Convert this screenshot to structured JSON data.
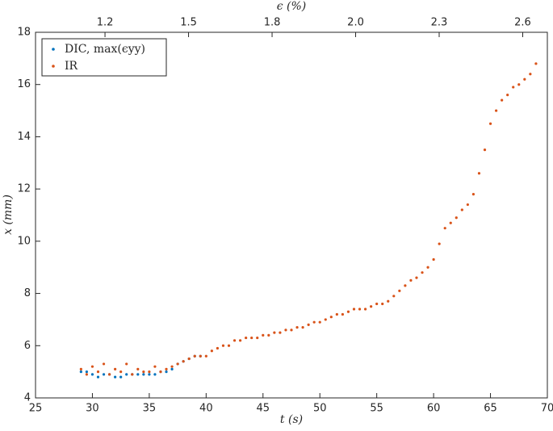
{
  "chart_data": {
    "type": "scatter",
    "xlabel": "t (s)",
    "ylabel": "x (mm)",
    "x2label": "ϵ (%)",
    "xlim": [
      25,
      70
    ],
    "xticks": [
      25,
      30,
      35,
      40,
      45,
      50,
      55,
      60,
      65,
      70
    ],
    "ylim": [
      4,
      18
    ],
    "yticks": [
      4,
      6,
      8,
      10,
      12,
      14,
      16,
      18
    ],
    "x2lim": [
      0.943,
      2.689
    ],
    "x2ticks": [
      {
        "value": 1.18,
        "label": "1.2"
      },
      {
        "value": 1.465,
        "label": "1.5"
      },
      {
        "value": 1.75,
        "label": "1.8"
      },
      {
        "value": 2.035,
        "label": "2.0"
      },
      {
        "value": 2.32,
        "label": "2.3"
      },
      {
        "value": 2.605,
        "label": "2.6"
      }
    ],
    "legend": "upper left",
    "series": [
      {
        "name": "DIC, max(ϵyy)",
        "color": "#0072bd",
        "x": [
          29,
          29.5,
          30,
          30.5,
          31,
          31.5,
          32,
          32.5,
          33,
          33.5,
          34,
          34.5,
          35,
          35.5,
          36,
          36.5,
          37,
          37.5,
          38,
          38.5,
          39,
          39.5
        ],
        "values": [
          5.0,
          5.0,
          4.9,
          4.8,
          4.9,
          4.9,
          4.8,
          4.8,
          4.9,
          4.9,
          4.9,
          4.9,
          4.9,
          4.9,
          5.0,
          5.0,
          5.1,
          5.3,
          5.4,
          5.5,
          5.6,
          5.6
        ]
      },
      {
        "name": "IR",
        "color": "#d95319",
        "x": [
          29,
          29.5,
          30,
          30.5,
          31,
          31.5,
          32,
          32.5,
          33,
          33.5,
          34,
          34.5,
          35,
          35.5,
          36,
          36.5,
          37,
          37.5,
          38,
          38.5,
          39,
          39.5,
          40,
          40.5,
          41,
          41.5,
          42,
          42.5,
          43,
          43.5,
          44,
          44.5,
          45,
          45.5,
          46,
          46.5,
          47,
          47.5,
          48,
          48.5,
          49,
          49.5,
          50,
          50.5,
          51,
          51.5,
          52,
          52.5,
          53,
          53.5,
          54,
          54.5,
          55,
          55.5,
          56,
          56.5,
          57,
          57.5,
          58,
          58.5,
          59,
          59.5,
          60,
          60.5,
          61,
          61.5,
          62,
          62.5,
          63,
          63.5,
          64,
          64.5,
          65,
          65.5,
          66,
          66.5,
          67,
          67.5,
          68,
          68.5,
          69
        ],
        "values": [
          5.1,
          4.9,
          5.2,
          5.0,
          5.3,
          4.9,
          5.1,
          5.0,
          5.3,
          4.9,
          5.1,
          5.0,
          5.0,
          5.2,
          5.0,
          5.1,
          5.2,
          5.3,
          5.4,
          5.5,
          5.6,
          5.6,
          5.6,
          5.8,
          5.9,
          6.0,
          6.0,
          6.2,
          6.2,
          6.3,
          6.3,
          6.3,
          6.4,
          6.4,
          6.5,
          6.5,
          6.6,
          6.6,
          6.7,
          6.7,
          6.8,
          6.9,
          6.9,
          7.0,
          7.1,
          7.2,
          7.2,
          7.3,
          7.4,
          7.4,
          7.4,
          7.5,
          7.6,
          7.6,
          7.7,
          7.9,
          8.1,
          8.3,
          8.5,
          8.6,
          8.8,
          9.0,
          9.3,
          9.9,
          10.5,
          10.7,
          10.9,
          11.2,
          11.4,
          11.8,
          12.6,
          13.5,
          14.5,
          15.0,
          15.4,
          15.6,
          15.9,
          16.0,
          16.2,
          16.4,
          16.8
        ]
      }
    ]
  }
}
